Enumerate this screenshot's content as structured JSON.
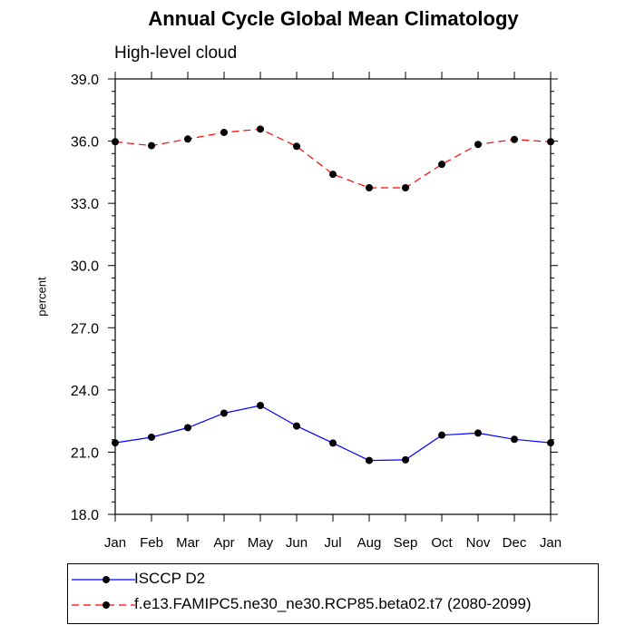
{
  "page": {
    "title": "Annual Cycle Global Mean Climatology",
    "subtitle": "High-level cloud"
  },
  "chart_data": {
    "type": "line",
    "title": "Annual Cycle Global Mean Climatology",
    "subtitle": "High-level cloud",
    "xlabel": "",
    "ylabel": "percent",
    "categories": [
      "Jan",
      "Feb",
      "Mar",
      "Apr",
      "May",
      "Jun",
      "Jul",
      "Aug",
      "Sep",
      "Oct",
      "Nov",
      "Dec",
      "Jan"
    ],
    "ylim": [
      18.0,
      39.0
    ],
    "yticks": [
      18.0,
      21.0,
      24.0,
      27.0,
      30.0,
      33.0,
      36.0,
      39.0
    ],
    "ytick_labels": [
      "18.0",
      "21.0",
      "24.0",
      "27.0",
      "30.0",
      "33.0",
      "36.0",
      "39.0"
    ],
    "grid": false,
    "legend_position": "bottom",
    "series": [
      {
        "name": "ISCCP D2",
        "color": "#0000ff",
        "dash": "solid",
        "values": [
          21.45,
          21.72,
          22.18,
          22.88,
          23.25,
          22.26,
          21.44,
          20.6,
          20.63,
          21.82,
          21.92,
          21.62,
          21.45
        ]
      },
      {
        "name": "f.e13.FAMIPC5.ne30_ne30.RCP85.beta02.t7 (2080-2099)",
        "color": "#ff0000",
        "dash": "dashed",
        "values": [
          35.97,
          35.78,
          36.1,
          36.42,
          36.58,
          35.75,
          34.4,
          33.75,
          33.75,
          34.88,
          35.84,
          36.08,
          35.97
        ]
      }
    ]
  }
}
